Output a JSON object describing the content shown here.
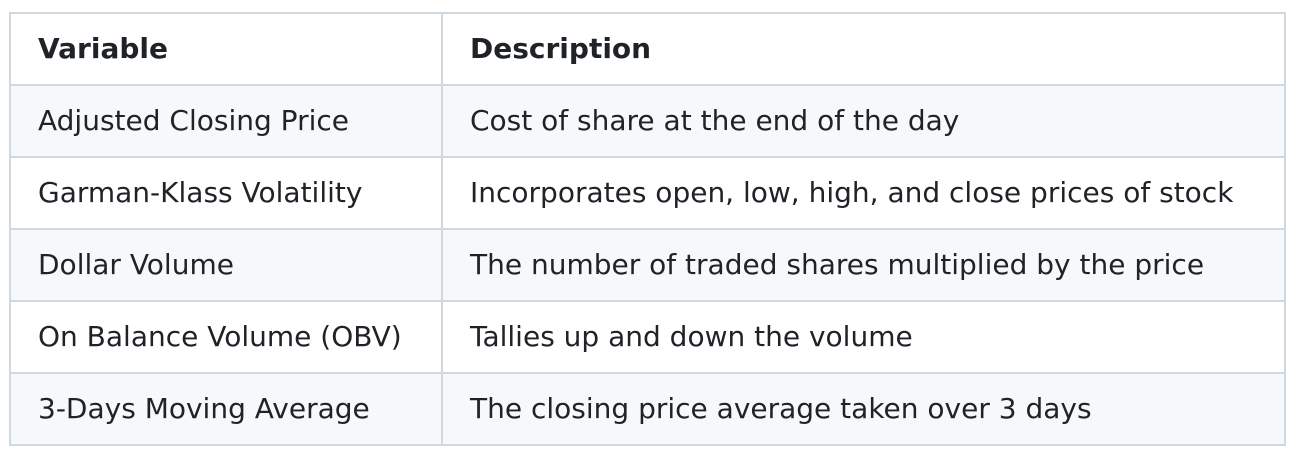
{
  "table": {
    "headers": [
      "Variable",
      "Description"
    ],
    "rows": [
      [
        "Adjusted Closing Price",
        "Cost of share at the end of the day"
      ],
      [
        "Garman-Klass Volatility",
        "Incorporates open, low, high, and close prices of stock"
      ],
      [
        "Dollar Volume",
        "The number of traded shares multiplied by the price"
      ],
      [
        "On Balance Volume (OBV)",
        "Tallies up and down the volume"
      ],
      [
        "3-Days Moving Average",
        "The closing price average taken over 3 days"
      ]
    ]
  }
}
